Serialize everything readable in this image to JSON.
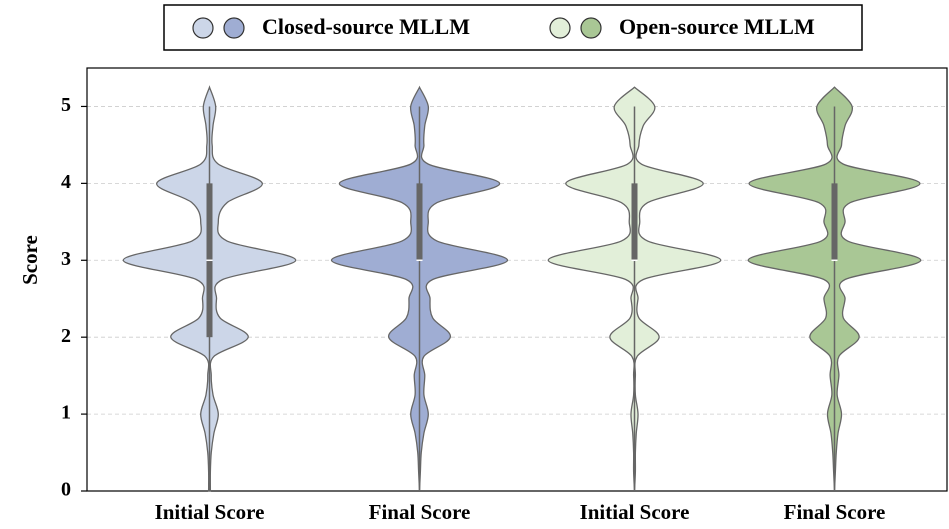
{
  "chart_data": {
    "type": "violin",
    "ylabel": "Score",
    "ylim": [
      0,
      5.5
    ],
    "yticks": [
      0,
      1,
      2,
      3,
      4,
      5
    ],
    "grid": true,
    "edge_color": "#666666",
    "profile_y": [
      0,
      0.25,
      0.5,
      0.75,
      1,
      1.25,
      1.5,
      1.75,
      2,
      2.25,
      2.5,
      2.75,
      3,
      3.25,
      3.5,
      3.75,
      4,
      4.25,
      4.5,
      4.75,
      5,
      5.25
    ],
    "groups": [
      {
        "name": "Closed-source MLLM",
        "violins": [
          {
            "category": "Initial Score",
            "color": "#ccd6e8",
            "density": [
              0.01,
              0.01,
              0.02,
              0.05,
              0.1,
              0.04,
              0.02,
              0.05,
              0.44,
              0.12,
              0.08,
              0.15,
              0.98,
              0.2,
              0.1,
              0.2,
              0.6,
              0.1,
              0.03,
              0.04,
              0.07,
              0
            ],
            "whisker_low": 0,
            "q1": 2,
            "median": 3,
            "q3": 4,
            "whisker_high": 5
          },
          {
            "category": "Final Score",
            "color": "#9fadd3",
            "density": [
              0,
              0.01,
              0.02,
              0.05,
              0.1,
              0.05,
              0.06,
              0.05,
              0.35,
              0.15,
              0.12,
              0.15,
              1.0,
              0.2,
              0.1,
              0.2,
              0.91,
              0.1,
              0.05,
              0.06,
              0.1,
              0
            ],
            "whisker_low": 0,
            "q1": 3,
            "median": 3,
            "q3": 4,
            "whisker_high": 5
          }
        ]
      },
      {
        "name": "Open-source MLLM",
        "violins": [
          {
            "category": "Initial Score",
            "color": "#e2efd9",
            "density": [
              0,
              0.01,
              0.01,
              0.02,
              0.04,
              0.01,
              0.01,
              0.03,
              0.28,
              0.05,
              0.04,
              0.1,
              0.98,
              0.15,
              0.06,
              0.15,
              0.78,
              0.08,
              0.05,
              0.1,
              0.23,
              0
            ],
            "whisker_low": 0,
            "q1": 3,
            "median": 3,
            "q3": 4,
            "whisker_high": 5
          },
          {
            "category": "Final Score",
            "color": "#a9c795",
            "density": [
              0,
              0.01,
              0.02,
              0.04,
              0.08,
              0.03,
              0.05,
              0.05,
              0.28,
              0.1,
              0.12,
              0.12,
              0.98,
              0.15,
              0.12,
              0.18,
              0.97,
              0.1,
              0.08,
              0.12,
              0.2,
              0
            ],
            "whisker_low": 0,
            "q1": 3,
            "median": 3,
            "q3": 4,
            "whisker_high": 5
          }
        ]
      }
    ]
  }
}
